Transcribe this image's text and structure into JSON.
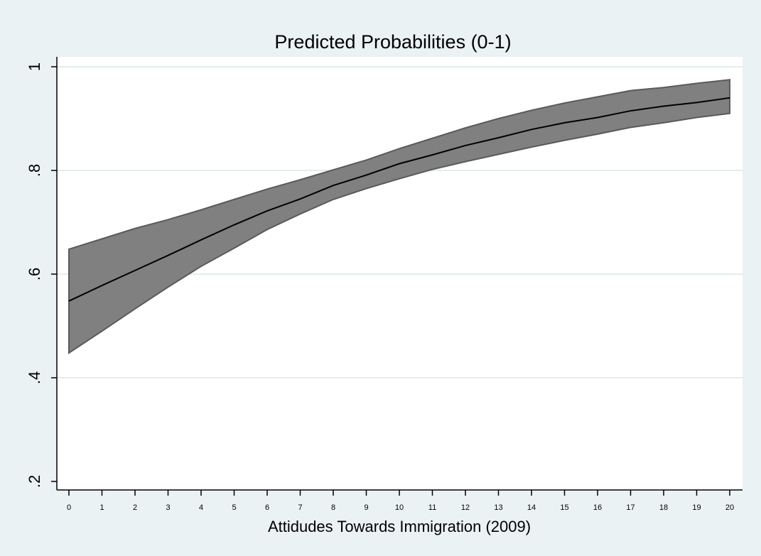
{
  "chart_data": {
    "type": "area",
    "title": "Predicted Probabilities (0-1)",
    "xlabel": "Attidudes Towards Immigration (2009)",
    "ylabel": "",
    "x": [
      0,
      1,
      2,
      3,
      4,
      5,
      6,
      7,
      8,
      9,
      10,
      11,
      12,
      13,
      14,
      15,
      16,
      17,
      18,
      19,
      20
    ],
    "x_ticks": [
      "0",
      "1",
      "2",
      "3",
      "4",
      "5",
      "6",
      "7",
      "8",
      "9",
      "10",
      "11",
      "12",
      "13",
      "14",
      "15",
      "16",
      "17",
      "18",
      "19",
      "20"
    ],
    "y_ticks": [
      {
        "value": 0.2,
        "label": ".2"
      },
      {
        "value": 0.4,
        "label": ".4"
      },
      {
        "value": 0.6,
        "label": ".6"
      },
      {
        "value": 0.8,
        "label": ".8"
      },
      {
        "value": 1.0,
        "label": "1"
      }
    ],
    "ylim": [
      0.18,
      1.02
    ],
    "xlim": [
      0,
      20
    ],
    "grid": true,
    "series": [
      {
        "values": [
          0.548,
          0.578,
          0.607,
          0.636,
          0.666,
          0.695,
          0.722,
          0.745,
          0.771,
          0.791,
          0.813,
          0.83,
          0.848,
          0.863,
          0.879,
          0.892,
          0.902,
          0.915,
          0.924,
          0.931,
          0.94
        ]
      }
    ],
    "ci_upper": [
      0.648,
      0.668,
      0.688,
      0.705,
      0.724,
      0.744,
      0.764,
      0.782,
      0.801,
      0.82,
      0.842,
      0.862,
      0.882,
      0.9,
      0.916,
      0.93,
      0.942,
      0.954,
      0.96,
      0.968,
      0.975
    ],
    "ci_lower": [
      0.448,
      0.49,
      0.533,
      0.575,
      0.615,
      0.65,
      0.686,
      0.716,
      0.744,
      0.765,
      0.784,
      0.802,
      0.817,
      0.831,
      0.845,
      0.858,
      0.87,
      0.883,
      0.892,
      0.902,
      0.91
    ],
    "colors": {
      "background": "#eaf2f3",
      "plot_background": "#ffffff",
      "ci_fill": "#808080",
      "ci_edge": "#5a5a5a",
      "line": "#000000",
      "grid": "#e4ecec"
    }
  }
}
